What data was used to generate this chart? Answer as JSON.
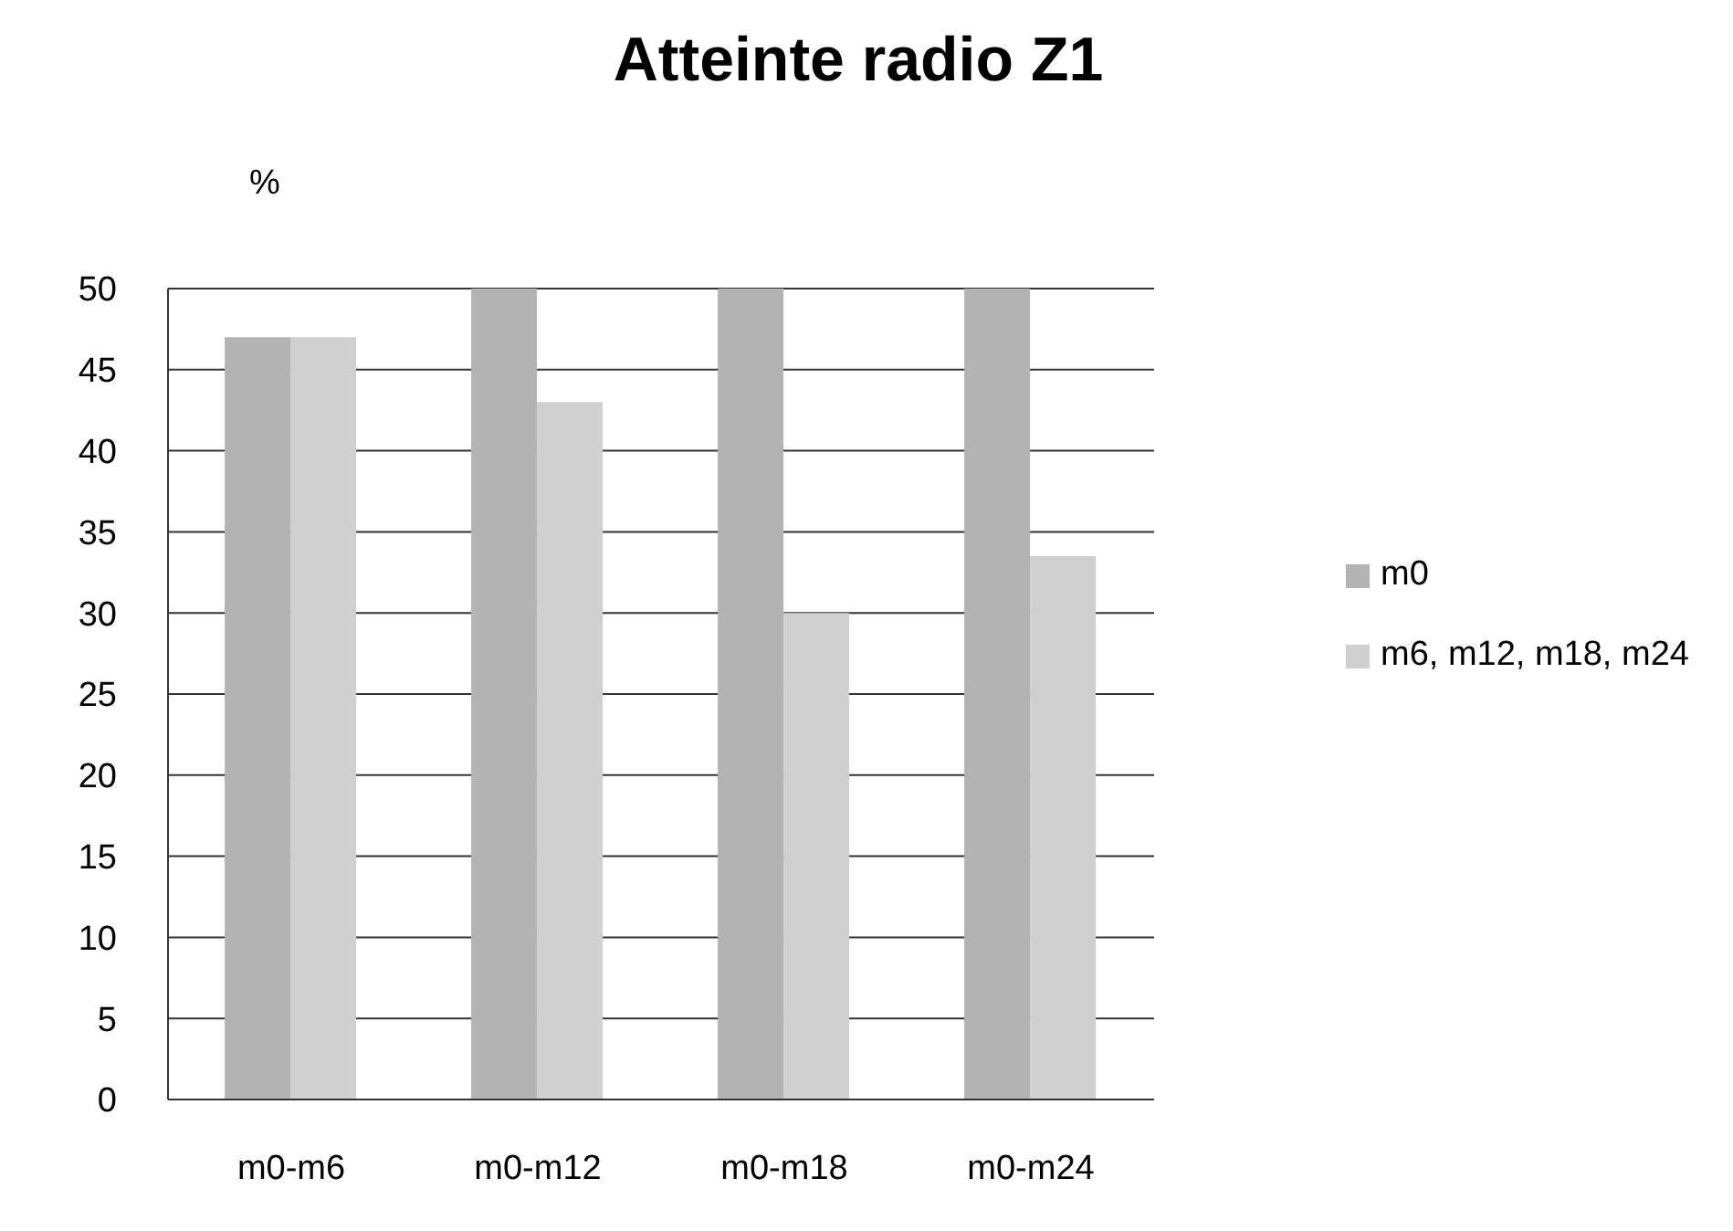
{
  "chart_data": {
    "type": "bar",
    "title": "Atteinte radio Z1",
    "ylabel": "%",
    "categories": [
      "m0-m6",
      "m0-m12",
      "m0-m18",
      "m0-m24"
    ],
    "series": [
      {
        "name": "m0",
        "color": "#b3b3b3",
        "values": [
          47,
          50,
          50,
          50
        ]
      },
      {
        "name": "m6, m12, m18, m24",
        "color": "#d0d0d0",
        "values": [
          47,
          43,
          30,
          33.5
        ]
      }
    ],
    "ylim": [
      0,
      50
    ],
    "yticks": [
      0,
      5,
      10,
      15,
      20,
      25,
      30,
      35,
      40,
      45,
      50
    ],
    "grid": "y",
    "legend": "right"
  }
}
